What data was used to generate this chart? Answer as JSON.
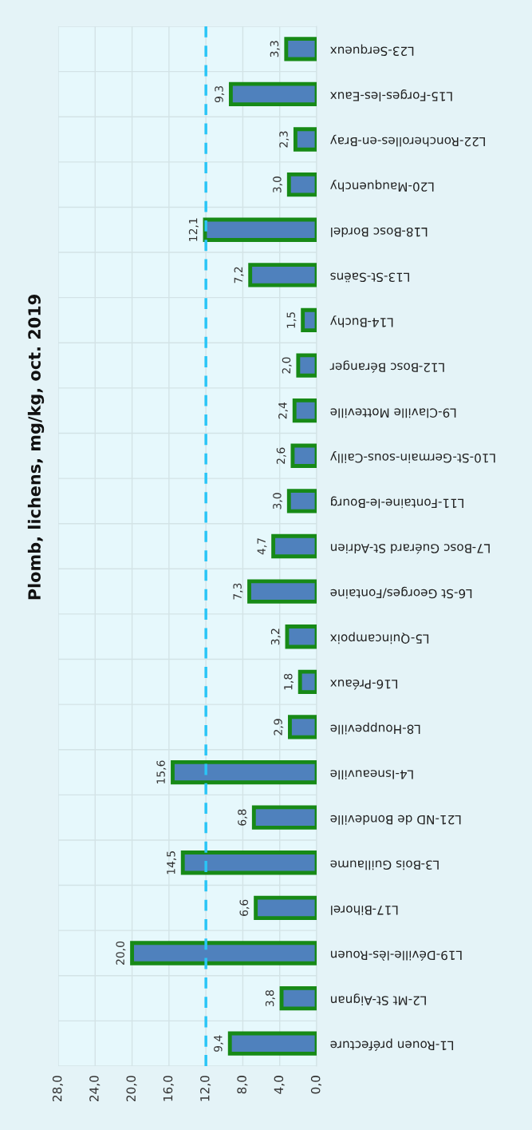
{
  "chart_data": {
    "type": "bar",
    "orientation": "horizontal",
    "title": "Plomb, lichens, mg/kg, oct. 2019",
    "categories": [
      "L23-Serqueux",
      "L15-Forges-les-Eaux",
      "L22-Roncherolles-en-Bray",
      "L20-Mauquenchy",
      "L18-Bosc Bordel",
      "L13-St-Saëns",
      "L14-Buchy",
      "L12-Bosc Béranger",
      "L9-Claville Motteville",
      "L10-St-Germain-sous-Cailly",
      "L11-Fontaine-le-Bourg",
      "L7-Bosc Guérard St-Adrien",
      "L6-St Georges/Fontaine",
      "L5-Quincampoix",
      "L16-Préaux",
      "L8-Houppeville",
      "L4-Isneauville",
      "L21-ND de Bondeville",
      "L3-Bois Guillaume",
      "L17-Bihorel",
      "L19-Déville-lès-Rouen",
      "L2-Mt St-Aignan",
      "L1-Rouen préfecture"
    ],
    "values": [
      3.3,
      9.3,
      2.3,
      3.0,
      12.1,
      7.2,
      1.5,
      2.0,
      2.4,
      2.6,
      3.0,
      4.7,
      7.3,
      3.2,
      1.8,
      2.9,
      15.6,
      6.8,
      14.5,
      6.6,
      20.0,
      3.8,
      9.4
    ],
    "value_labels": [
      "3,3",
      "9,3",
      "2,3",
      "3,0",
      "12,1",
      "7,2",
      "1,5",
      "2,0",
      "2,4",
      "2,6",
      "3,0",
      "4,7",
      "7,3",
      "3,2",
      "1,8",
      "2,9",
      "15,6",
      "6,8",
      "14,5",
      "6,6",
      "20,0",
      "3,8",
      "9,4"
    ],
    "color": "#4f81bd",
    "xlim": [
      28,
      0
    ],
    "xticks": [
      {
        "value": 28,
        "label": "28,0"
      },
      {
        "value": 24,
        "label": "24,0"
      },
      {
        "value": 20,
        "label": "20,0"
      },
      {
        "value": 16,
        "label": "16,0"
      },
      {
        "value": 12,
        "label": "12,0"
      },
      {
        "value": 8,
        "label": "8,0"
      },
      {
        "value": 4,
        "label": "4,0"
      },
      {
        "value": 0,
        "label": "0,0"
      }
    ],
    "ref_lines": [
      {
        "axis": "x",
        "value": 12,
        "label": null,
        "color": "#29c5f6",
        "line_style": "dashed"
      }
    ],
    "grid": true,
    "legend": false
  }
}
